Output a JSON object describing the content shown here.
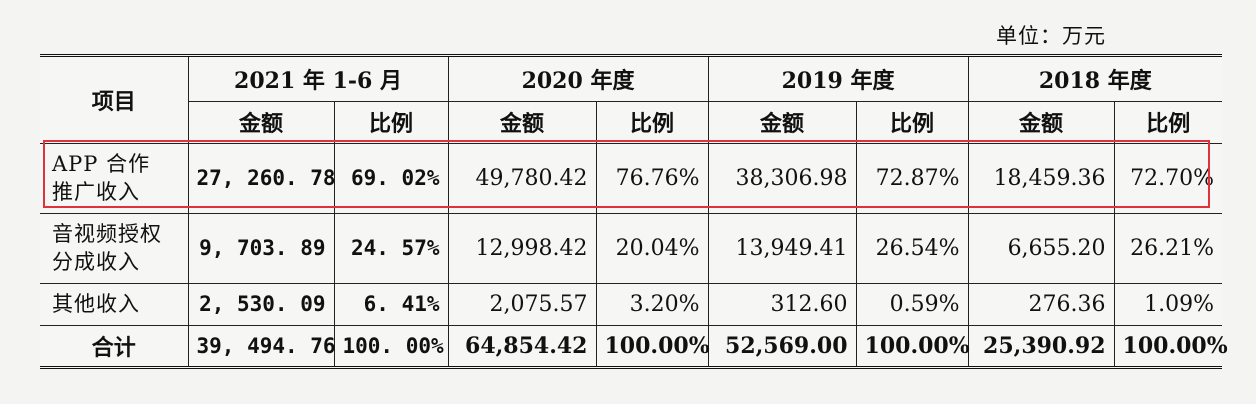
{
  "unit_label": "单位：万元",
  "header": {
    "item": "项目",
    "periods": [
      "2021 年 1-6 月",
      "2020 年度",
      "2019 年度",
      "2018 年度"
    ],
    "amount": "金额",
    "ratio": "比例"
  },
  "rows": [
    {
      "label": [
        "APP 合作",
        "推广收入"
      ],
      "values": [
        "27, 260. 78",
        "69. 02%",
        "49,780.42",
        "76.76%",
        "38,306.98",
        "72.87%",
        "18,459.36",
        "72.70%"
      ]
    },
    {
      "label": [
        "音视频授权",
        "分成收入"
      ],
      "values": [
        "9, 703. 89",
        "24. 57%",
        "12,998.42",
        "20.04%",
        "13,949.41",
        "26.54%",
        "6,655.20",
        "26.21%"
      ]
    },
    {
      "label": [
        "其他收入"
      ],
      "values": [
        "2, 530. 09",
        "6. 41%",
        "2,075.57",
        "3.20%",
        "312.60",
        "0.59%",
        "276.36",
        "1.09%"
      ]
    }
  ],
  "total": {
    "label": "合计",
    "values": [
      "39, 494. 76",
      "100. 00%",
      "64,854.42",
      "100.00%",
      "52,569.00",
      "100.00%",
      "25,390.92",
      "100.00%"
    ]
  },
  "highlight_color": "#e0323c"
}
